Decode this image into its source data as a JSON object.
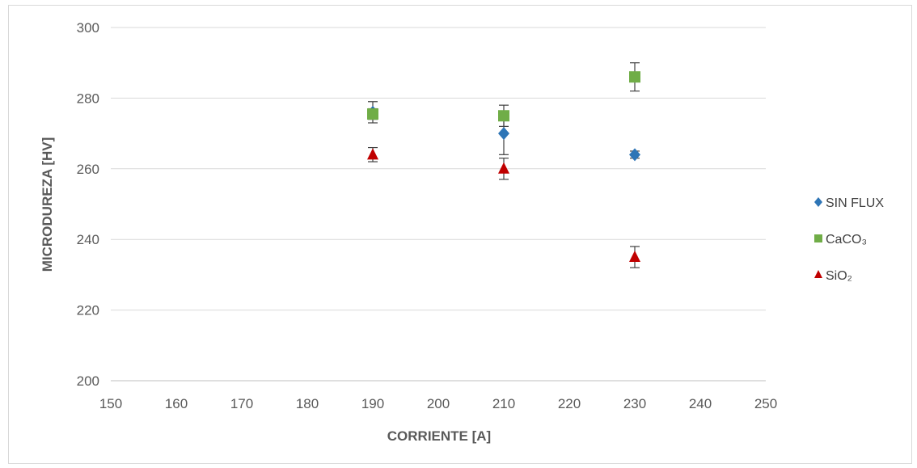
{
  "chart_data": {
    "type": "scatter",
    "title": "",
    "xlabel": "CORRIENTE [A]",
    "ylabel": "MICRODUREZA [HV]",
    "xlim": [
      150,
      250
    ],
    "ylim": [
      200,
      300
    ],
    "xticks": [
      150,
      160,
      170,
      180,
      190,
      200,
      210,
      220,
      230,
      240,
      250
    ],
    "yticks": [
      200,
      220,
      240,
      260,
      280,
      300
    ],
    "grid": "horizontal",
    "legend_position": "right",
    "series": [
      {
        "name": "SIN FLUX",
        "marker": "diamond",
        "color": "#2e75b6",
        "points": [
          {
            "x": 190,
            "y": 276,
            "err": 3
          },
          {
            "x": 210,
            "y": 270,
            "err": 6
          },
          {
            "x": 230,
            "y": 264,
            "err": 1
          }
        ]
      },
      {
        "name": "CaCO₃",
        "marker": "square",
        "color": "#70ad47",
        "points": [
          {
            "x": 190,
            "y": 275.5,
            "err": 1.5
          },
          {
            "x": 210,
            "y": 275,
            "err": 3
          },
          {
            "x": 230,
            "y": 286,
            "err": 4
          }
        ]
      },
      {
        "name": "SiO₂",
        "marker": "triangle",
        "color": "#c00000",
        "points": [
          {
            "x": 190,
            "y": 264,
            "err": 2
          },
          {
            "x": 210,
            "y": 260,
            "err": 3
          },
          {
            "x": 230,
            "y": 235,
            "err": 3
          }
        ]
      }
    ]
  }
}
